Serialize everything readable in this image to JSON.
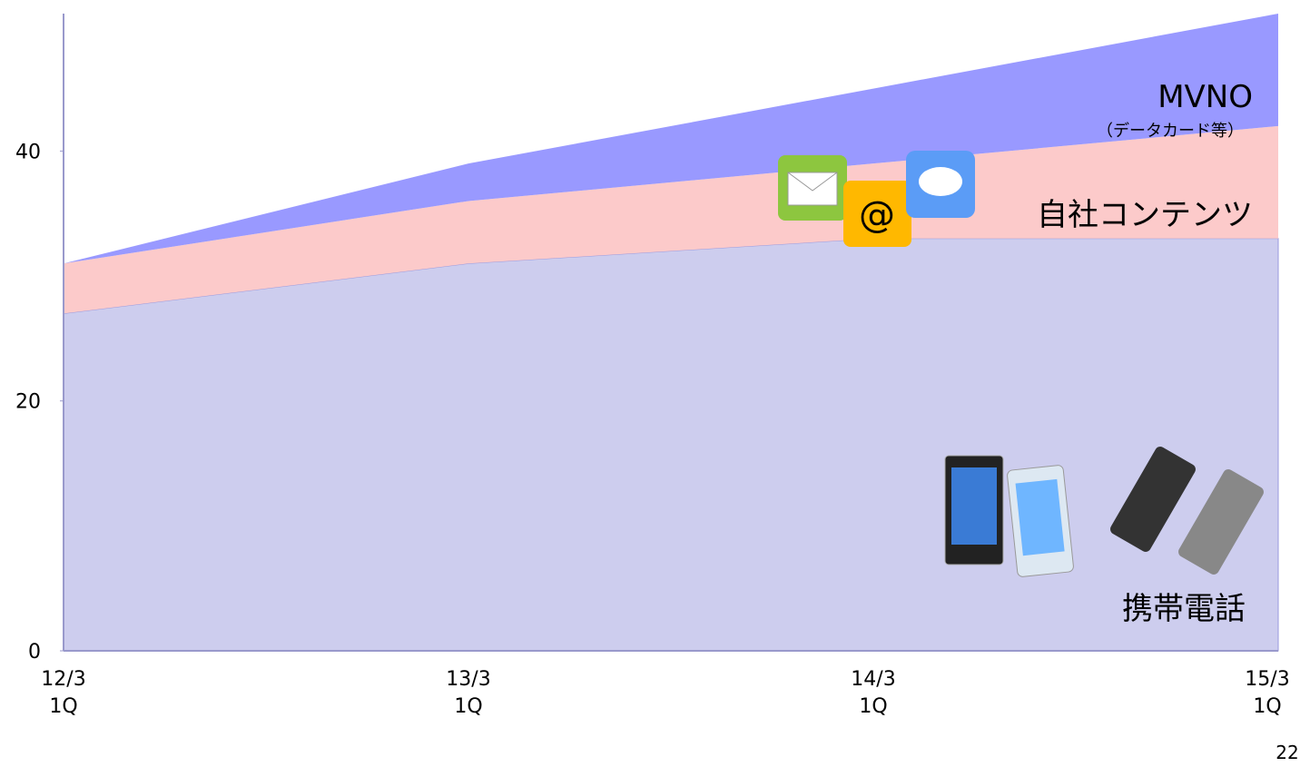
{
  "chart_data": {
    "type": "stacked-area",
    "categories": [
      "12/3\n1Q",
      "13/3\n1Q",
      "14/3\n1Q",
      "15/3\n1Q"
    ],
    "series": [
      {
        "name": "携帯電話",
        "color": "#cdcdee",
        "values": [
          27,
          31,
          33,
          33
        ]
      },
      {
        "name": "自社コンテンツ",
        "color": "#fccaca",
        "values": [
          4,
          5,
          6,
          9
        ]
      },
      {
        "name": "MVNO",
        "color": "#9999ff",
        "values": [
          0,
          3,
          6,
          9
        ]
      }
    ],
    "annotations": [
      "（データカード等）"
    ],
    "ylim": [
      0,
      51
    ],
    "yticks": [
      0,
      20,
      40
    ],
    "page_number": "22"
  }
}
